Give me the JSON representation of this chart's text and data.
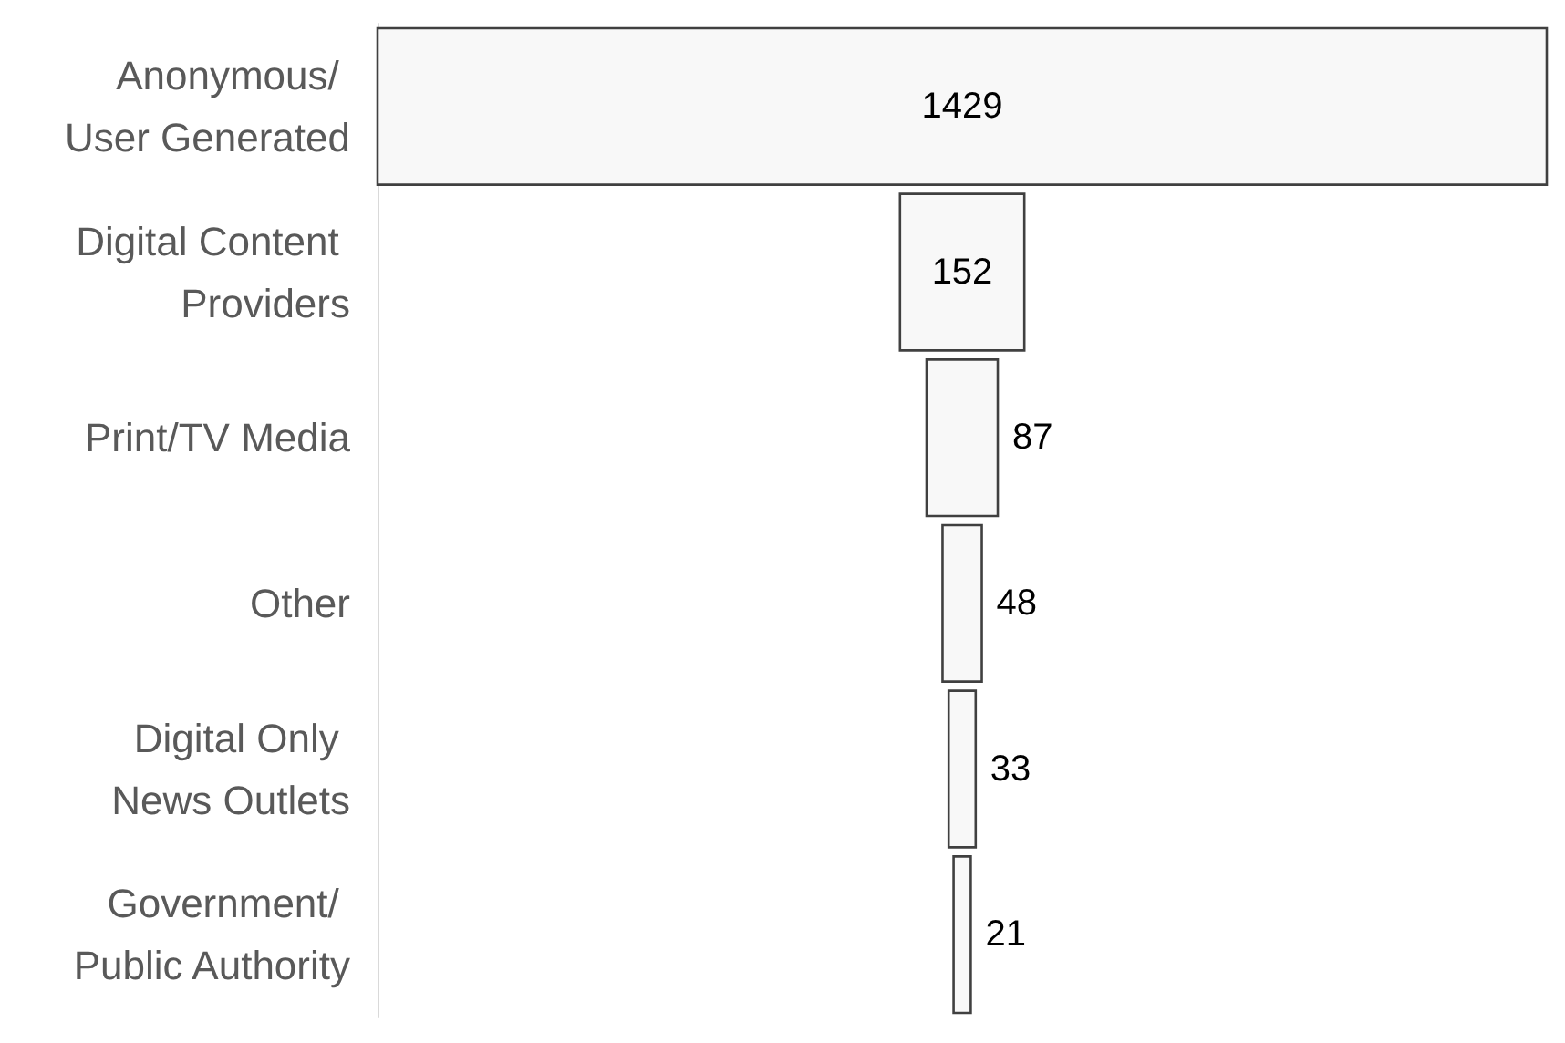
{
  "chart_data": {
    "type": "other",
    "categories": [
      "Anonymous/ User Generated",
      "Digital Content Providers",
      "Print/TV Media",
      "Other",
      "Digital Only News Outlets",
      "Government/ Public Authority"
    ],
    "values": [
      1429,
      152,
      87,
      48,
      33,
      21
    ],
    "color": "#f8f8f8",
    "data_labels": true
  }
}
